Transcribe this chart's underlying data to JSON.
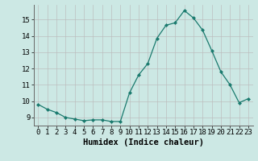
{
  "x": [
    0,
    1,
    2,
    3,
    4,
    5,
    6,
    7,
    8,
    9,
    10,
    11,
    12,
    13,
    14,
    15,
    16,
    17,
    18,
    19,
    20,
    21,
    22,
    23
  ],
  "y": [
    9.8,
    9.5,
    9.3,
    9.0,
    8.9,
    8.8,
    8.85,
    8.85,
    8.75,
    8.75,
    10.5,
    11.6,
    12.3,
    13.85,
    14.65,
    14.8,
    15.55,
    15.1,
    14.35,
    13.1,
    11.8,
    11.0,
    9.9,
    10.15
  ],
  "xlabel": "Humidex (Indice chaleur)",
  "ylim": [
    8.5,
    15.9
  ],
  "xlim": [
    -0.5,
    23.5
  ],
  "bg_color": "#cce8e4",
  "line_color": "#1a7a6e",
  "grid_major_color": "#bbbbbb",
  "grid_minor_color": "#dddddd",
  "tick_fontsize": 6.5,
  "xlabel_fontsize": 7.5
}
